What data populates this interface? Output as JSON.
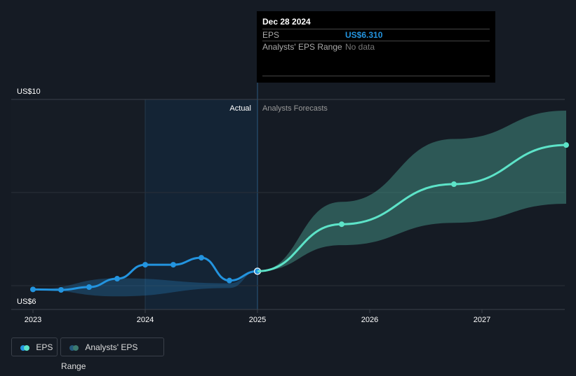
{
  "chart_data": {
    "type": "line",
    "y_ticks": [
      {
        "value": 10,
        "label": "US$10"
      },
      {
        "value": 6,
        "label": "US$6"
      }
    ],
    "ylim": [
      5.5,
      10.3
    ],
    "x_ticks": [
      {
        "value": 2023,
        "label": "2023"
      },
      {
        "value": 2024,
        "label": "2024"
      },
      {
        "value": 2025,
        "label": "2025"
      },
      {
        "value": 2026,
        "label": "2026"
      },
      {
        "value": 2027,
        "label": "2027"
      }
    ],
    "xlim": [
      2022.8,
      2027.75
    ],
    "region_labels": {
      "actual": "Actual",
      "forecast": "Analysts Forecasts"
    },
    "series": [
      {
        "name": "EPS",
        "color": "#2394df",
        "points": [
          [
            2023,
            5.92
          ],
          [
            2023.25,
            5.91
          ],
          [
            2023.5,
            5.97
          ],
          [
            2023.75,
            6.15
          ],
          [
            2024,
            6.45
          ],
          [
            2024.25,
            6.45
          ],
          [
            2024.5,
            6.6
          ],
          [
            2024.75,
            6.11
          ],
          [
            2025,
            6.31
          ]
        ]
      },
      {
        "name": "EPS Forecast",
        "color": "#5de3c8",
        "points": [
          [
            2025,
            6.31
          ],
          [
            2025.75,
            7.32
          ],
          [
            2026.75,
            8.18
          ],
          [
            2027.75,
            9.02
          ]
        ]
      }
    ],
    "ranges": [
      {
        "name": "Analysts' EPS Range (past)",
        "upper": [
          [
            2023,
            5.92
          ],
          [
            2023.75,
            6.16
          ],
          [
            2024.75,
            6.05
          ],
          [
            2025,
            6.31
          ]
        ],
        "lower": [
          [
            2023,
            5.92
          ],
          [
            2023.75,
            5.77
          ],
          [
            2024.75,
            5.95
          ],
          [
            2025,
            6.31
          ]
        ]
      },
      {
        "name": "Analysts' EPS Range",
        "upper": [
          [
            2025,
            6.31
          ],
          [
            2025.75,
            7.8
          ],
          [
            2026.75,
            9.15
          ],
          [
            2027.75,
            9.76
          ]
        ],
        "lower": [
          [
            2025,
            6.31
          ],
          [
            2025.75,
            6.87
          ],
          [
            2026.75,
            7.35
          ],
          [
            2027.75,
            7.76
          ]
        ]
      }
    ]
  },
  "tooltip": {
    "date": "Dec 28 2024",
    "eps_label": "EPS",
    "eps_value": "US$6.310",
    "range_label": "Analysts' EPS Range",
    "range_value": "No data"
  },
  "legend": {
    "eps": "EPS",
    "range": "Analysts' EPS Range"
  }
}
